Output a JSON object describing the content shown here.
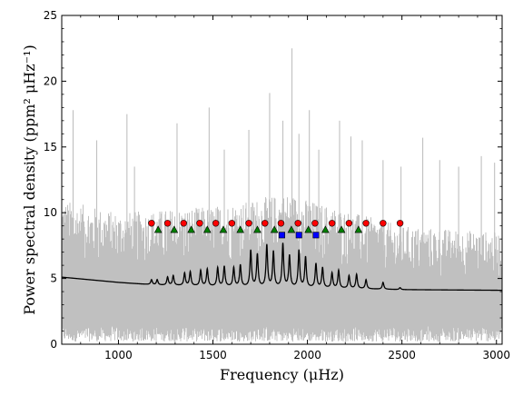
{
  "chart_data": {
    "type": "line",
    "title": "",
    "xlabel": "Frequency (μHz)",
    "ylabel": "Power spectral density (ppm² μHz⁻¹)",
    "xlim": [
      700,
      3030
    ],
    "ylim": [
      0,
      25
    ],
    "xticks": [
      1000,
      1500,
      2000,
      2500,
      3000
    ],
    "yticks": [
      0,
      5,
      10,
      15,
      20,
      25
    ],
    "xtick_labels": [
      "1000",
      "1500",
      "2000",
      "2500",
      "3000"
    ],
    "ytick_labels": [
      "0",
      "5",
      "10",
      "15",
      "20",
      "25"
    ],
    "grid": false,
    "legend": "none",
    "colors": {
      "spectrum": "#c0c0c0",
      "model": "#000000",
      "l0_modes": "#ff0000",
      "l1_modes": "#008000",
      "l2_modes": "#0000ff"
    },
    "series": [
      {
        "kind": "noisy-spectrum",
        "envelope": {
          "x": [
            700,
            1000,
            1500,
            1900,
            2000,
            2500,
            3030
          ],
          "y_center": [
            4.9,
            4.5,
            4.8,
            5.5,
            5.2,
            4.3,
            4.1
          ],
          "y_upper_typical": [
            11,
            10,
            10.5,
            11.5,
            11,
            9,
            8.5
          ],
          "y_lower": [
            0.2,
            0.2,
            0.2,
            0.2,
            0.2,
            0.2,
            0.2
          ]
        },
        "spikes": [
          {
            "x": 760,
            "y": 17.8
          },
          {
            "x": 885,
            "y": 15.5
          },
          {
            "x": 1045,
            "y": 17.5
          },
          {
            "x": 1085,
            "y": 13.5
          },
          {
            "x": 1310,
            "y": 16.8
          },
          {
            "x": 1480,
            "y": 18.0
          },
          {
            "x": 1560,
            "y": 14.8
          },
          {
            "x": 1690,
            "y": 16.3
          },
          {
            "x": 1800,
            "y": 19.1
          },
          {
            "x": 1870,
            "y": 17.0
          },
          {
            "x": 1918,
            "y": 22.5
          },
          {
            "x": 1955,
            "y": 16.0
          },
          {
            "x": 2010,
            "y": 17.8
          },
          {
            "x": 2060,
            "y": 14.8
          },
          {
            "x": 2170,
            "y": 17.0
          },
          {
            "x": 2230,
            "y": 15.8
          },
          {
            "x": 2290,
            "y": 15.5
          },
          {
            "x": 2400,
            "y": 14.0
          },
          {
            "x": 2495,
            "y": 13.5
          },
          {
            "x": 2610,
            "y": 15.7
          },
          {
            "x": 2700,
            "y": 14.0
          },
          {
            "x": 2800,
            "y": 13.5
          },
          {
            "x": 2920,
            "y": 14.3
          },
          {
            "x": 2990,
            "y": 13.8
          }
        ]
      },
      {
        "kind": "model-fit",
        "background": {
          "x": [
            700,
            1000,
            1200,
            1500,
            2000,
            2500,
            3030
          ],
          "y": [
            5.1,
            4.7,
            4.5,
            4.4,
            4.3,
            4.15,
            4.1
          ]
        },
        "peaks": [
          {
            "x": 1175,
            "y": 4.9
          },
          {
            "x": 1205,
            "y": 4.9
          },
          {
            "x": 1260,
            "y": 5.1
          },
          {
            "x": 1290,
            "y": 5.2
          },
          {
            "x": 1350,
            "y": 5.4
          },
          {
            "x": 1380,
            "y": 5.5
          },
          {
            "x": 1435,
            "y": 5.6
          },
          {
            "x": 1470,
            "y": 5.7
          },
          {
            "x": 1525,
            "y": 5.8
          },
          {
            "x": 1560,
            "y": 5.9
          },
          {
            "x": 1610,
            "y": 5.8
          },
          {
            "x": 1645,
            "y": 6.0
          },
          {
            "x": 1700,
            "y": 7.1
          },
          {
            "x": 1735,
            "y": 6.8
          },
          {
            "x": 1785,
            "y": 7.5
          },
          {
            "x": 1820,
            "y": 7.0
          },
          {
            "x": 1870,
            "y": 7.6
          },
          {
            "x": 1905,
            "y": 6.7
          },
          {
            "x": 1955,
            "y": 7.1
          },
          {
            "x": 1990,
            "y": 6.6
          },
          {
            "x": 2045,
            "y": 6.1
          },
          {
            "x": 2080,
            "y": 5.8
          },
          {
            "x": 2130,
            "y": 5.4
          },
          {
            "x": 2165,
            "y": 5.6
          },
          {
            "x": 2220,
            "y": 5.2
          },
          {
            "x": 2260,
            "y": 5.3
          },
          {
            "x": 2310,
            "y": 4.9
          },
          {
            "x": 2400,
            "y": 4.7
          },
          {
            "x": 2490,
            "y": 4.3
          }
        ]
      }
    ],
    "markers": {
      "l0": {
        "shape": "circle",
        "y": 9.2,
        "x": [
          1175,
          1260,
          1345,
          1430,
          1515,
          1600,
          1690,
          1775,
          1860,
          1950,
          2040,
          2130,
          2220,
          2310,
          2400,
          2490
        ]
      },
      "l1": {
        "shape": "triangle",
        "y": 8.7,
        "x": [
          1210,
          1295,
          1385,
          1470,
          1555,
          1645,
          1735,
          1825,
          1915,
          2005,
          2095,
          2180,
          2270
        ]
      },
      "l2": {
        "shape": "square",
        "y": 8.3,
        "x": [
          1865,
          1955,
          2045
        ]
      }
    }
  }
}
